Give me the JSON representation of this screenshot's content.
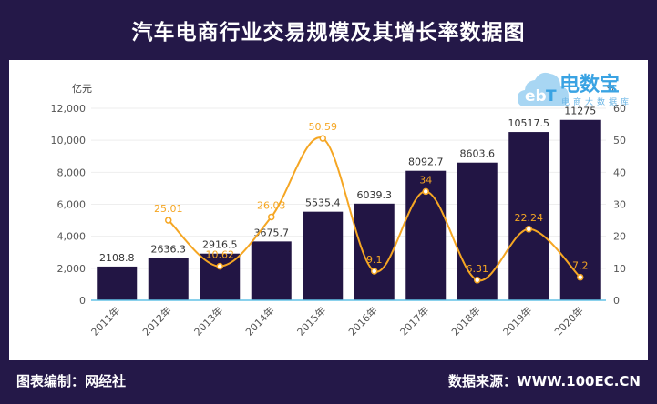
{
  "header": {
    "title": "汽车电商行业交易规模及其增长率数据图"
  },
  "footer": {
    "left": "图表编制：网经社",
    "right": "数据来源：WWW.100EC.CN"
  },
  "logo": {
    "text": "电数宝",
    "sub": "电商大数据库"
  },
  "colors": {
    "background": "#241848",
    "bar": "#221544",
    "line": "#f5a623",
    "axis": "#63c2e5"
  },
  "chart_data": {
    "type": "bar",
    "categories": [
      "2011年",
      "2012年",
      "2013年",
      "2014年",
      "2015年",
      "2016年",
      "2017年",
      "2018年",
      "2019年",
      "2020年"
    ],
    "series": [
      {
        "values": [
          2108.8,
          2636.3,
          2916.5,
          3675.7,
          5535.4,
          6039.3,
          8092.7,
          8603.6,
          10517.5,
          11275
        ],
        "type": "bar",
        "axis": "left"
      },
      {
        "values": [
          null,
          25.01,
          10.62,
          26.03,
          50.59,
          9.1,
          34,
          6.31,
          22.24,
          7.2
        ],
        "type": "line",
        "axis": "right"
      }
    ],
    "bar_labels": [
      "2108.8",
      "2636.3",
      "2916.5",
      "3675.7",
      "5535.4",
      "6039.3",
      "8092.7",
      "8603.6",
      "10517.5",
      "11275"
    ],
    "line_labels": [
      "",
      "25.01",
      "10.62",
      "26.03",
      "50.59",
      "9.1",
      "34",
      "6.31",
      "22.24",
      "7.2"
    ],
    "y_left": {
      "unit": "亿元",
      "ylim": [
        0,
        12000
      ],
      "ticks": [
        "0",
        "2,000",
        "4,000",
        "6,000",
        "8,000",
        "10,000",
        "12,000"
      ]
    },
    "y_right": {
      "unit": "%",
      "ylim": [
        0,
        60
      ],
      "ticks": [
        "0",
        "10",
        "20",
        "30",
        "40",
        "50",
        "60"
      ]
    },
    "grid": true
  }
}
